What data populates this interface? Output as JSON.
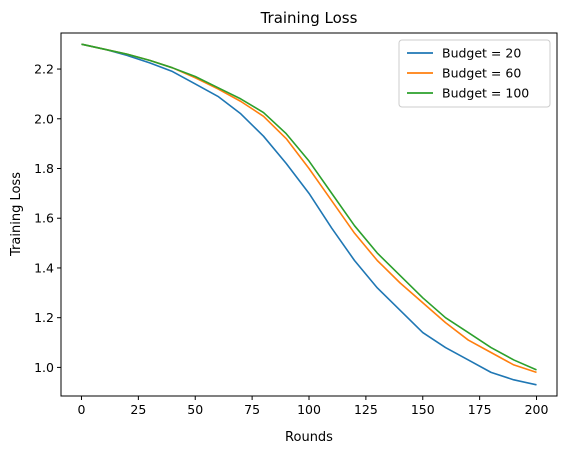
{
  "chart_data": {
    "type": "line",
    "title": "Training Loss",
    "xlabel": "Rounds",
    "ylabel": "Training Loss",
    "xlim": [
      -9,
      209
    ],
    "ylim": [
      0.885,
      2.345
    ],
    "xticks": [
      0,
      25,
      50,
      75,
      100,
      125,
      150,
      175,
      200
    ],
    "yticks": [
      1.0,
      1.2,
      1.4,
      1.6,
      1.8,
      2.0,
      2.2
    ],
    "ytick_labels": [
      "1.0",
      "1.2",
      "1.4",
      "1.6",
      "1.8",
      "2.0",
      "2.2"
    ],
    "grid": false,
    "legend_position": "upper-right",
    "x": [
      0,
      10,
      20,
      30,
      40,
      50,
      60,
      70,
      80,
      90,
      100,
      110,
      120,
      130,
      140,
      150,
      160,
      170,
      180,
      190,
      200
    ],
    "series": [
      {
        "name": "Budget = 20",
        "color": "#1f77b4",
        "values": [
          2.3,
          2.28,
          2.255,
          2.225,
          2.19,
          2.14,
          2.09,
          2.02,
          1.93,
          1.82,
          1.7,
          1.56,
          1.43,
          1.32,
          1.23,
          1.14,
          1.08,
          1.03,
          0.98,
          0.95,
          0.93
        ]
      },
      {
        "name": "Budget = 60",
        "color": "#ff7f0e",
        "values": [
          2.3,
          2.28,
          2.26,
          2.235,
          2.205,
          2.165,
          2.12,
          2.07,
          2.01,
          1.92,
          1.8,
          1.67,
          1.54,
          1.43,
          1.34,
          1.26,
          1.18,
          1.11,
          1.06,
          1.01,
          0.98
        ]
      },
      {
        "name": "Budget = 100",
        "color": "#2ca02c",
        "values": [
          2.3,
          2.28,
          2.26,
          2.235,
          2.205,
          2.17,
          2.125,
          2.08,
          2.025,
          1.94,
          1.83,
          1.7,
          1.57,
          1.46,
          1.37,
          1.28,
          1.2,
          1.14,
          1.08,
          1.03,
          0.99
        ]
      }
    ]
  }
}
